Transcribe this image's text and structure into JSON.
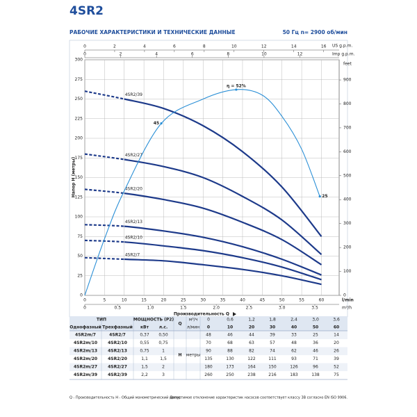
{
  "header": {
    "title": "4SR2",
    "subtitle": "РАБОЧИЕ ХАРАКТЕРИСТИКИ И ТЕХНИЧЕСКИЕ ДАННЫЕ",
    "speed": "50 Гц   n= 2900 об/мин"
  },
  "chart": {
    "x_title": "Производительность Q",
    "x_unit": "l/min",
    "xlim": [
      0,
      64.5
    ],
    "xticks": [
      0,
      5,
      10,
      15,
      20,
      25,
      30,
      35,
      40,
      45,
      50,
      55,
      60
    ],
    "y_title": "Напор H (метры)",
    "ylim": [
      0,
      300
    ],
    "yticks": [
      0,
      25,
      50,
      75,
      100,
      125,
      150,
      175,
      200,
      225,
      250,
      275,
      300
    ],
    "grid": true,
    "curve_color": "#1d3a8a",
    "feet": {
      "unit": "feet",
      "lim": [
        0,
        984.3
      ],
      "ticks": [
        0,
        100,
        200,
        300,
        400,
        500,
        600,
        700,
        800,
        900
      ]
    },
    "us_gpm": {
      "unit": "US g.p.m.",
      "lim": [
        0,
        17.04
      ],
      "ticks": [
        0,
        2,
        4,
        6,
        8,
        10,
        12,
        14,
        16
      ]
    },
    "imp_gpm": {
      "unit": "Imp g.p.m.",
      "lim": [
        0,
        14.19
      ],
      "ticks": [
        0,
        2,
        4,
        6,
        8,
        10,
        12
      ]
    },
    "m3h": {
      "unit": "m³/h",
      "lim": [
        0,
        3.87
      ],
      "ticks": [
        0,
        0.5,
        {
          "value": 1,
          "label": "1.0"
        },
        1.5,
        {
          "value": 2,
          "label": "2.0"
        },
        2.5,
        {
          "value": 3,
          "label": "3.0"
        },
        3.5
      ]
    },
    "efficiency": {
      "color": "#2a8fd6",
      "x": [
        0,
        5,
        10,
        19.4,
        30,
        38.4,
        45,
        50,
        55,
        59.6
      ],
      "y": [
        0,
        72,
        133,
        219,
        250,
        262,
        255,
        228,
        186,
        126
      ],
      "points": [
        {
          "x": 38.4,
          "y": 262,
          "label": "η = 52%"
        },
        {
          "x": 19.4,
          "y": 219,
          "label": "45"
        },
        {
          "x": 59.6,
          "y": 126,
          "label": "25"
        }
      ]
    }
  },
  "table": {
    "type_header": "ТИП",
    "power_header": "МОЩНОСТЬ (P2)",
    "q_label": "Q",
    "h_label": "H",
    "h_unit": "метры",
    "col_single": "Однофазный",
    "col_three": "Трехфазный",
    "kw": "кВт",
    "hp": "л.с.",
    "m3h_unit": "м³/ч",
    "lpm_unit": "л/мин",
    "flow_m3h": [
      "0",
      "0,6",
      "1,2",
      "1,8",
      "2,4",
      "3,0",
      "3,6"
    ],
    "flow_lpm": [
      0,
      10,
      20,
      30,
      40,
      50,
      60
    ],
    "rows": [
      {
        "single": "4SR2m/7",
        "model": "4SR2/7",
        "kw": "0,37",
        "hp": "0,50",
        "head": [
          48,
          46,
          44,
          39,
          33,
          25,
          14
        ]
      },
      {
        "single": "4SR2m/10",
        "model": "4SR2/10",
        "kw": "0,55",
        "hp": "0,75",
        "head": [
          70,
          68,
          63,
          57,
          48,
          36,
          20
        ]
      },
      {
        "single": "4SR2m/13",
        "model": "4SR2/13",
        "kw": "0,75",
        "hp": "1",
        "head": [
          90,
          88,
          82,
          74,
          62,
          46,
          26
        ]
      },
      {
        "single": "4SR2m/20",
        "model": "4SR2/20",
        "kw": "1,1",
        "hp": "1,5",
        "head": [
          135,
          130,
          122,
          111,
          93,
          71,
          39
        ]
      },
      {
        "single": "4SR2m/27",
        "model": "4SR2/27",
        "kw": "1,5",
        "hp": "2",
        "head": [
          180,
          173,
          164,
          150,
          126,
          96,
          52
        ]
      },
      {
        "single": "4SR2m/39",
        "model": "4SR2/39",
        "kw": "2,2",
        "hp": "3",
        "head": [
          260,
          250,
          238,
          216,
          183,
          138,
          75
        ]
      }
    ]
  },
  "footer": {
    "left": "Q - Производительность   H - Общий манометрический напор",
    "right": "Допустимое отклонение характеристик насосов соответствует классу 3B согласно EN ISO 9906."
  }
}
